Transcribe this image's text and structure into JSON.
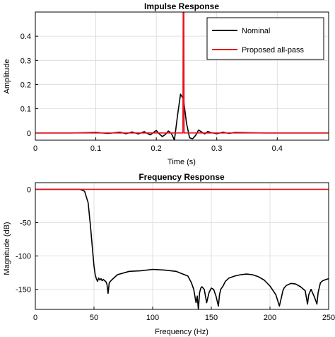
{
  "colors": {
    "nominal": "#000000",
    "proposed": "#e8141c",
    "grid": "#d8d8d8",
    "axis": "#000000"
  },
  "chart_data": [
    {
      "type": "line",
      "title": "Impulse Response",
      "xlabel": "Time (s)",
      "ylabel": "Amplitude",
      "xlim": [
        0,
        0.485
      ],
      "ylim": [
        -0.03,
        0.5
      ],
      "xticks": [
        0,
        0.1,
        0.2,
        0.3,
        0.4
      ],
      "xtick_labels": [
        "0",
        "0.1",
        "0.2",
        "0.3",
        "0.4"
      ],
      "yticks": [
        0,
        0.1,
        0.2,
        0.3,
        0.4
      ],
      "ytick_labels": [
        "0",
        "0.1",
        "0.2",
        "0.3",
        "0.4"
      ],
      "grid": true,
      "legend": {
        "placement": "top-right",
        "entries": [
          "Nominal",
          "Proposed all-pass"
        ]
      },
      "series": [
        {
          "name": "Nominal",
          "color": "#000000",
          "x": [
            0,
            0.06,
            0.1,
            0.12,
            0.14,
            0.15,
            0.16,
            0.17,
            0.18,
            0.19,
            0.2,
            0.205,
            0.21,
            0.215,
            0.22,
            0.225,
            0.23,
            0.235,
            0.24,
            0.245,
            0.25,
            0.255,
            0.26,
            0.265,
            0.27,
            0.275,
            0.28,
            0.285,
            0.29,
            0.3,
            0.31,
            0.32,
            0.33,
            0.35,
            0.38,
            0.42,
            0.485
          ],
          "y": [
            0,
            0,
            0.002,
            -0.002,
            0.003,
            -0.003,
            0.004,
            -0.004,
            0.005,
            -0.008,
            0.01,
            -0.004,
            -0.015,
            -0.006,
            0.008,
            -0.002,
            -0.03,
            0.07,
            0.16,
            0.14,
            0.04,
            -0.02,
            -0.024,
            -0.01,
            0.012,
            0.004,
            -0.004,
            0.006,
            0.002,
            -0.003,
            0.003,
            -0.002,
            0.002,
            0.001,
            0,
            0,
            0
          ]
        },
        {
          "name": "Proposed all-pass",
          "color": "#e8141c",
          "x": [
            0,
            0.244,
            0.2445,
            0.2455,
            0.246,
            0.485
          ],
          "y": [
            0,
            0,
            0.5,
            0.5,
            0,
            0
          ]
        }
      ]
    },
    {
      "type": "line",
      "title": "Frequency Response",
      "xlabel": "Frequency (Hz)",
      "ylabel": "Magnitude (dB)",
      "xlim": [
        0,
        250
      ],
      "ylim": [
        -180,
        10
      ],
      "xticks": [
        0,
        50,
        100,
        150,
        200,
        250
      ],
      "xtick_labels": [
        "0",
        "50",
        "100",
        "150",
        "200",
        "250"
      ],
      "yticks": [
        0,
        -50,
        -100,
        -150
      ],
      "ytick_labels": [
        "0",
        "-50",
        "-100",
        "-150"
      ],
      "grid": true,
      "series": [
        {
          "name": "Nominal",
          "color": "#000000",
          "x": [
            0,
            38,
            42,
            45,
            47,
            49,
            50,
            51,
            52,
            53,
            54,
            55,
            56,
            57,
            58,
            59,
            60,
            61,
            62,
            63,
            65,
            70,
            80,
            90,
            100,
            110,
            120,
            130,
            133,
            135,
            137,
            138,
            139,
            140,
            141,
            142,
            144,
            146,
            148,
            150,
            152,
            154,
            156,
            157,
            158,
            160,
            162,
            165,
            170,
            175,
            180,
            185,
            190,
            195,
            200,
            205,
            208,
            210,
            211,
            212,
            214,
            218,
            222,
            226,
            230,
            232,
            233,
            235,
            238,
            240,
            241,
            243,
            245,
            248,
            250
          ],
          "y": [
            0,
            0,
            -3,
            -20,
            -55,
            -95,
            -115,
            -128,
            -134,
            -138,
            -133,
            -136,
            -134,
            -137,
            -135,
            -137,
            -138,
            -142,
            -156,
            -140,
            -136,
            -128,
            -123,
            -122,
            -120,
            -121,
            -123,
            -130,
            -140,
            -150,
            -170,
            -160,
            -180,
            -155,
            -148,
            -146,
            -150,
            -170,
            -155,
            -148,
            -150,
            -160,
            -175,
            -158,
            -150,
            -145,
            -138,
            -133,
            -130,
            -128,
            -127,
            -128,
            -131,
            -136,
            -145,
            -158,
            -175,
            -160,
            -152,
            -148,
            -144,
            -141,
            -142,
            -146,
            -152,
            -172,
            -158,
            -150,
            -162,
            -172,
            -155,
            -140,
            -137,
            -135,
            -134
          ]
        },
        {
          "name": "Proposed all-pass",
          "color": "#e8141c",
          "x": [
            0,
            250
          ],
          "y": [
            0,
            0
          ]
        }
      ]
    }
  ]
}
